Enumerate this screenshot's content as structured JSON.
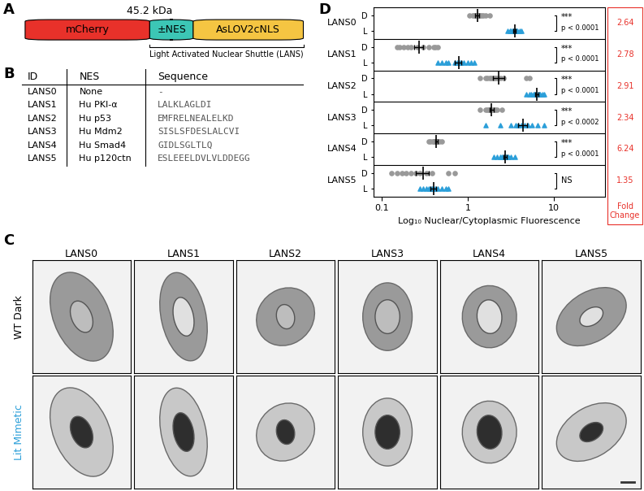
{
  "panel_labels": [
    "A",
    "B",
    "C",
    "D"
  ],
  "schematic": {
    "mass": "45.2 kDa",
    "domains": [
      {
        "label": "mCherry",
        "color": "#e8312a"
      },
      {
        "label": "±NES",
        "color": "#3cc6b5"
      },
      {
        "label": "AsLOV2cNLS",
        "color": "#f5c542"
      }
    ],
    "bracket_label": "Light Activated Nuclear Shuttle (LANS)"
  },
  "table": {
    "header": [
      "ID",
      "NES",
      "Sequence"
    ],
    "rows": [
      [
        "LANS0",
        "None",
        "-"
      ],
      [
        "LANS1",
        "Hu PKI-α",
        "LALKLAGLDI"
      ],
      [
        "LANS2",
        "Hu p53",
        "EMFRELNEALELKD"
      ],
      [
        "LANS3",
        "Hu Mdm2",
        "SISLSFDESLALCVI"
      ],
      [
        "LANS4",
        "Hu Smad4",
        "GIDLSGLTLQ"
      ],
      [
        "LANS5",
        "Hu p120ctn",
        "ESLEEELDVLVLDDEGG"
      ]
    ]
  },
  "images": {
    "columns": [
      "LANS0",
      "LANS1",
      "LANS2",
      "LANS3",
      "LANS4",
      "LANS5"
    ],
    "rows": [
      "WT Dark",
      "Lit Mimetic"
    ],
    "row_colors": [
      "#000000",
      "#2b9fd9"
    ]
  },
  "chart_data": {
    "type": "scatter",
    "xlabel": "Log₁₀ Nuclear/Cytoplasmic Fluorescence",
    "log": "x",
    "xlim": [
      0.08,
      40
    ],
    "xticks": [
      0.1,
      1,
      10
    ],
    "fold_change_title": "Fold Change",
    "fold_change_color": "#e8312a",
    "series": [
      {
        "name": "D",
        "color": "#999999",
        "marker": "circle"
      },
      {
        "name": "L",
        "color": "#2b9fd9",
        "marker": "triangle"
      }
    ],
    "groups": [
      {
        "name": "LANS0",
        "D": {
          "values": [
            1.05,
            1.15,
            1.2,
            1.25,
            1.3,
            1.3,
            1.35,
            1.4,
            1.45,
            1.5,
            1.6,
            1.8
          ],
          "mean": 1.3,
          "error": 0.07
        },
        "L": {
          "values": [
            2.9,
            3.1,
            3.2,
            3.3,
            3.4,
            3.5,
            3.6,
            3.7,
            3.8,
            4.0,
            4.2
          ],
          "mean": 3.5,
          "error": 0.12
        },
        "significance": "***",
        "p_label": "p < 0.0001",
        "fold_change": 2.64
      },
      {
        "name": "LANS1",
        "D": {
          "values": [
            0.15,
            0.16,
            0.18,
            0.2,
            0.22,
            0.26,
            0.3,
            0.35,
            0.4,
            0.42,
            0.45
          ],
          "mean": 0.27,
          "error": 0.03
        },
        "L": {
          "values": [
            0.45,
            0.5,
            0.55,
            0.6,
            0.7,
            0.75,
            0.8,
            0.85,
            0.9,
            1.0,
            1.1,
            1.2
          ],
          "mean": 0.78,
          "error": 0.07
        },
        "significance": "***",
        "p_label": "p < 0.0001",
        "fold_change": 2.78
      },
      {
        "name": "LANS2",
        "D": {
          "values": [
            1.4,
            1.6,
            1.7,
            1.8,
            1.9,
            2.0,
            2.1,
            2.2,
            2.4,
            2.6,
            4.8,
            5.2
          ],
          "mean": 2.3,
          "error": 0.35
        },
        "L": {
          "values": [
            4.8,
            5.2,
            5.5,
            5.8,
            6.0,
            6.2,
            6.4,
            6.6,
            6.8,
            7.0,
            7.4,
            7.8
          ],
          "mean": 6.4,
          "error": 0.3
        },
        "significance": "***",
        "p_label": "p < 0.0001",
        "fold_change": 2.91
      },
      {
        "name": "LANS3",
        "D": {
          "values": [
            1.4,
            1.6,
            1.7,
            1.75,
            1.8,
            1.85,
            1.9,
            2.0,
            2.1,
            2.2,
            2.5
          ],
          "mean": 1.9,
          "error": 0.1
        },
        "L": {
          "values": [
            1.6,
            2.4,
            3.2,
            3.6,
            3.9,
            4.2,
            4.6,
            5.0,
            5.6,
            6.5,
            7.8
          ],
          "mean": 4.4,
          "error": 0.5
        },
        "significance": "***",
        "p_label": "p < 0.0002",
        "fold_change": 2.34
      },
      {
        "name": "LANS4",
        "D": {
          "values": [
            0.35,
            0.37,
            0.39,
            0.4,
            0.41,
            0.42,
            0.43,
            0.44,
            0.45,
            0.47,
            0.5
          ],
          "mean": 0.43,
          "error": 0.015
        },
        "L": {
          "values": [
            2.0,
            2.2,
            2.4,
            2.5,
            2.6,
            2.7,
            2.8,
            2.9,
            3.0,
            3.2,
            3.5
          ],
          "mean": 2.7,
          "error": 0.12
        },
        "significance": "***",
        "p_label": "p < 0.0001",
        "fold_change": 6.24
      },
      {
        "name": "LANS5",
        "D": {
          "values": [
            0.13,
            0.15,
            0.17,
            0.19,
            0.22,
            0.25,
            0.28,
            0.33,
            0.38,
            0.6,
            0.7
          ],
          "mean": 0.3,
          "error": 0.05
        },
        "L": {
          "values": [
            0.28,
            0.3,
            0.33,
            0.35,
            0.37,
            0.38,
            0.4,
            0.42,
            0.45,
            0.5,
            0.55,
            0.6
          ],
          "mean": 0.4,
          "error": 0.03
        },
        "significance": "NS",
        "fold_change": 1.35
      }
    ]
  }
}
